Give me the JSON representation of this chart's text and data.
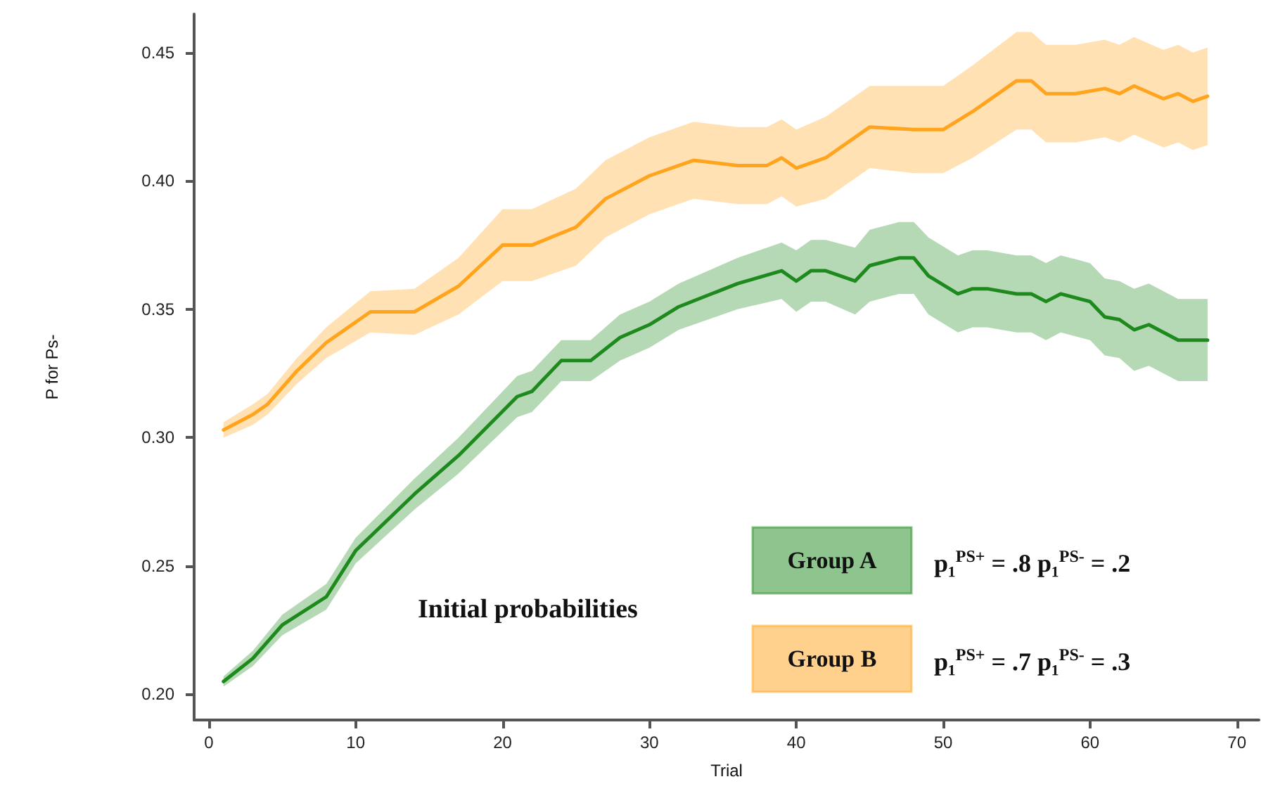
{
  "chart_data": {
    "type": "line",
    "xlabel": "Trial",
    "ylabel": "P for Ps-",
    "legend_title": "Initial probabilities",
    "legend": "bottom right",
    "grid": false,
    "marker": "none",
    "line_style": "solid",
    "xlim": [
      -1,
      71.5
    ],
    "xticks": [
      0,
      10,
      20,
      30,
      40,
      50,
      60,
      70
    ],
    "ylim": [
      0.19,
      0.465
    ],
    "yticks": [
      {
        "value": 0.2,
        "label": "0.20"
      },
      {
        "value": 0.25,
        "label": "0.25"
      },
      {
        "value": 0.3,
        "label": "0.30"
      },
      {
        "value": 0.35,
        "label": "0.35"
      },
      {
        "value": 0.4,
        "label": "0.40"
      },
      {
        "value": 0.45,
        "label": "0.45"
      }
    ],
    "annotations": [
      "p₁$^{PS+}$ = .8 p₁$^{PS-}$ = .2",
      "p₁$^{PS+}$ = .7 p₁$^{PS-}$ = .3"
    ],
    "series": [
      {
        "name": "Group A",
        "color": "#1e8a1e",
        "x": [
          1,
          3,
          5,
          8,
          10,
          14,
          17,
          21,
          22,
          24,
          26,
          28,
          30,
          32,
          36,
          39,
          40,
          41,
          42,
          44,
          45,
          47,
          48,
          49,
          51,
          52,
          53,
          55,
          56,
          57,
          58,
          60,
          61,
          62,
          63,
          64,
          66,
          68
        ],
        "values": [
          0.205,
          0.214,
          0.227,
          0.238,
          0.256,
          0.278,
          0.293,
          0.316,
          0.318,
          0.33,
          0.33,
          0.339,
          0.344,
          0.351,
          0.36,
          0.365,
          0.361,
          0.365,
          0.365,
          0.361,
          0.367,
          0.37,
          0.37,
          0.363,
          0.356,
          0.358,
          0.358,
          0.356,
          0.356,
          0.353,
          0.356,
          0.353,
          0.347,
          0.346,
          0.342,
          0.344,
          0.338,
          0.338
        ],
        "lower": [
          0.203,
          0.211,
          0.223,
          0.233,
          0.251,
          0.272,
          0.286,
          0.308,
          0.31,
          0.322,
          0.322,
          0.33,
          0.335,
          0.342,
          0.35,
          0.354,
          0.349,
          0.353,
          0.353,
          0.348,
          0.353,
          0.356,
          0.356,
          0.348,
          0.341,
          0.343,
          0.343,
          0.341,
          0.341,
          0.338,
          0.341,
          0.338,
          0.332,
          0.331,
          0.326,
          0.328,
          0.322,
          0.322
        ],
        "upper": [
          0.207,
          0.217,
          0.231,
          0.243,
          0.261,
          0.284,
          0.3,
          0.324,
          0.326,
          0.338,
          0.338,
          0.348,
          0.353,
          0.36,
          0.37,
          0.376,
          0.373,
          0.377,
          0.377,
          0.374,
          0.381,
          0.384,
          0.384,
          0.378,
          0.371,
          0.373,
          0.373,
          0.371,
          0.371,
          0.368,
          0.371,
          0.368,
          0.362,
          0.361,
          0.358,
          0.36,
          0.354,
          0.354
        ]
      },
      {
        "name": "Group B",
        "color": "#ffa41c",
        "x": [
          1,
          3,
          4,
          6,
          8,
          11,
          14,
          17,
          20,
          22,
          25,
          27,
          30,
          33,
          36,
          38,
          39,
          40,
          42,
          45,
          48,
          50,
          52,
          55,
          56,
          57,
          59,
          61,
          62,
          63,
          65,
          66,
          67,
          68
        ],
        "values": [
          0.303,
          0.309,
          0.313,
          0.326,
          0.337,
          0.349,
          0.349,
          0.359,
          0.375,
          0.375,
          0.382,
          0.393,
          0.402,
          0.408,
          0.406,
          0.406,
          0.409,
          0.405,
          0.409,
          0.421,
          0.42,
          0.42,
          0.427,
          0.439,
          0.439,
          0.434,
          0.434,
          0.436,
          0.434,
          0.437,
          0.432,
          0.434,
          0.431,
          0.433
        ],
        "lower": [
          0.3,
          0.305,
          0.309,
          0.321,
          0.331,
          0.341,
          0.34,
          0.348,
          0.361,
          0.361,
          0.367,
          0.378,
          0.387,
          0.393,
          0.391,
          0.391,
          0.394,
          0.39,
          0.393,
          0.405,
          0.403,
          0.403,
          0.409,
          0.42,
          0.42,
          0.415,
          0.415,
          0.417,
          0.415,
          0.418,
          0.413,
          0.415,
          0.412,
          0.414
        ],
        "upper": [
          0.306,
          0.313,
          0.317,
          0.331,
          0.343,
          0.357,
          0.358,
          0.37,
          0.389,
          0.389,
          0.397,
          0.408,
          0.417,
          0.423,
          0.421,
          0.421,
          0.424,
          0.42,
          0.425,
          0.437,
          0.437,
          0.437,
          0.445,
          0.458,
          0.458,
          0.453,
          0.453,
          0.455,
          0.453,
          0.456,
          0.451,
          0.453,
          0.45,
          0.452
        ]
      }
    ]
  }
}
